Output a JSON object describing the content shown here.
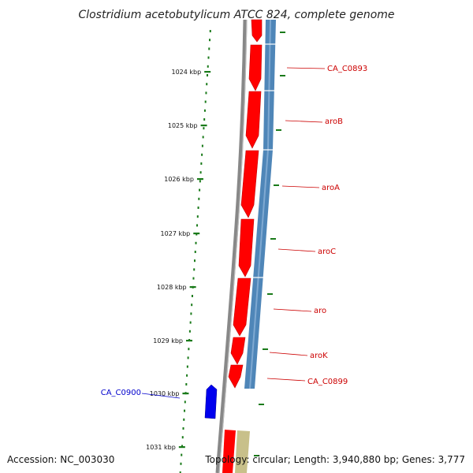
{
  "title": "Clostridium acetobutylicum ATCC 824, complete genome",
  "footer": {
    "accession": "Accession: NC_003030",
    "summary": "Topology: circular; Length: 3,940,880 bp; Genes: 3,777"
  },
  "ticks": [
    "1024 kbp",
    "1025 kbp",
    "1026 kbp",
    "1027 kbp",
    "1028 kbp",
    "1029 kbp",
    "1030 kbp",
    "1031 kbp"
  ],
  "genes": [
    {
      "label": "CA_C0893",
      "color": "#cc0000"
    },
    {
      "label": "aroB",
      "color": "#cc0000"
    },
    {
      "label": "aroA",
      "color": "#cc0000"
    },
    {
      "label": "aroC",
      "color": "#cc0000"
    },
    {
      "label": "aro",
      "color": "#cc0000"
    },
    {
      "label": "aroK",
      "color": "#cc0000"
    },
    {
      "label": "CA_C0899",
      "color": "#cc0000"
    },
    {
      "label": "CA_C0900",
      "color": "#0000cc"
    }
  ],
  "colors": {
    "forward_cds": "#ff0000",
    "forward_cds_dark": "#c40000",
    "reverse_cds_feature": "#0000ee",
    "shaded_track": "#4f86b8",
    "backbone": "#888888",
    "tick_marks": "#1a7a1a",
    "other_feature": "#c8c08a"
  }
}
